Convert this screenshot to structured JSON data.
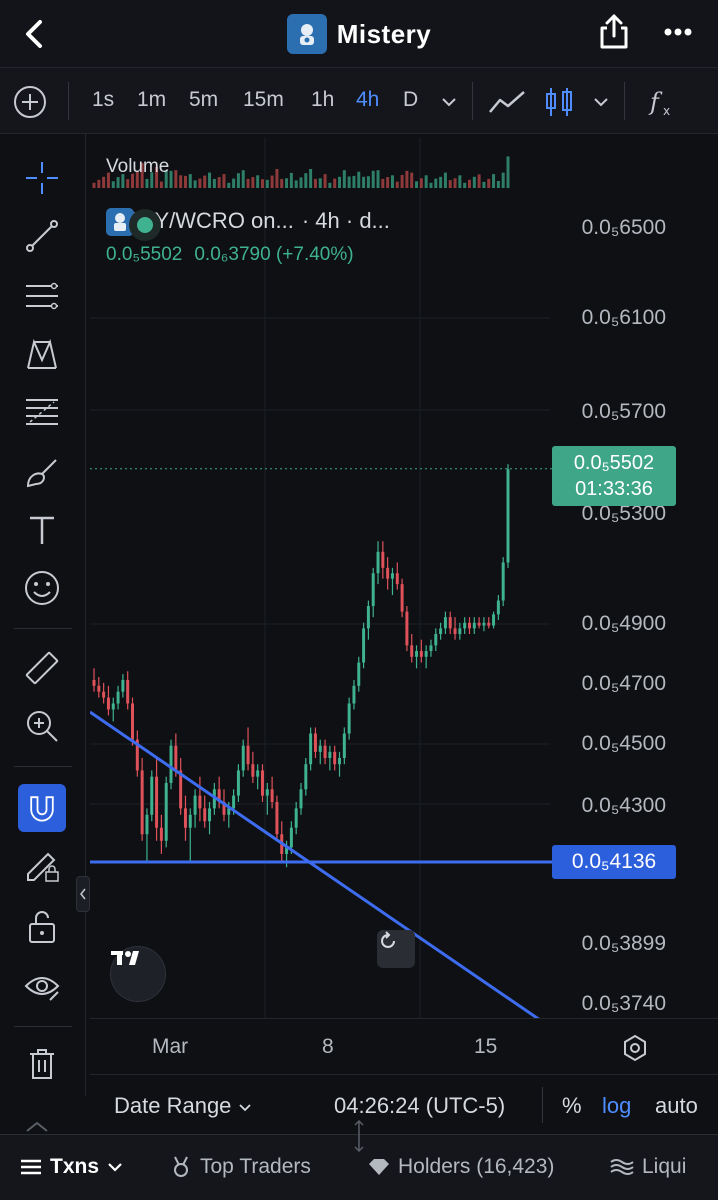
{
  "nav": {
    "title": "Mistery"
  },
  "toolbar": {
    "timeframes": [
      "1s",
      "1m",
      "5m",
      "15m",
      "1h",
      "4h",
      "D"
    ],
    "active_timeframe": "4h"
  },
  "legend": {
    "pair": "MERY/WCRO on...",
    "interval": "· 4h · d...",
    "price": "0.0₅5502",
    "change": "0.0₆3790 (+7.40%)"
  },
  "volume_label": "Volume",
  "price_axis": {
    "labels": [
      "0.0₅6500",
      "0.0₅6100",
      "0.0₅5700",
      "0.0₅5300",
      "0.0₅4900",
      "0.0₅4700",
      "0.0₅4500",
      "0.0₅4300",
      "0.0₅3899",
      "0.0₅3740"
    ],
    "live_price": "0.0₅5502",
    "countdown": "01:33:36",
    "hline_price": "0.0₅4136"
  },
  "x_axis": {
    "labels": [
      "Mar",
      "8",
      "15"
    ]
  },
  "footer": {
    "date_range": "Date Range",
    "clock": "04:26:24 (UTC-5)",
    "percent": "%",
    "log": "log",
    "auto": "auto"
  },
  "bottom_tabs": [
    "Txns",
    "Top Traders",
    "Holders (16,423)",
    "Liqui"
  ],
  "chart_data": {
    "type": "candlestick",
    "title": "MERY/WCRO",
    "interval": "4h",
    "x": [
      "Mar",
      "8",
      "15"
    ],
    "scale": "log",
    "yrange": [
      3.72e-06,
      6.6e-06
    ],
    "last_price": 5.502e-06,
    "horizontal_line": 4.136e-06,
    "candles": [
      [
        4.72,
        4.76,
        4.68,
        4.7
      ],
      [
        4.7,
        4.73,
        4.66,
        4.68
      ],
      [
        4.68,
        4.71,
        4.64,
        4.66
      ],
      [
        4.66,
        4.7,
        4.6,
        4.62
      ],
      [
        4.62,
        4.66,
        4.58,
        4.64
      ],
      [
        4.64,
        4.7,
        4.62,
        4.68
      ],
      [
        4.68,
        4.74,
        4.66,
        4.72
      ],
      [
        4.72,
        4.75,
        4.62,
        4.64
      ],
      [
        4.64,
        4.66,
        4.5,
        4.52
      ],
      [
        4.52,
        4.55,
        4.4,
        4.42
      ],
      [
        4.42,
        4.46,
        4.2,
        4.22
      ],
      [
        4.22,
        4.3,
        4.14,
        4.28
      ],
      [
        4.28,
        4.42,
        4.26,
        4.4
      ],
      [
        4.4,
        4.46,
        4.2,
        4.24
      ],
      [
        4.24,
        4.28,
        4.16,
        4.2
      ],
      [
        4.2,
        4.4,
        4.18,
        4.38
      ],
      [
        4.38,
        4.52,
        4.36,
        4.5
      ],
      [
        4.5,
        4.54,
        4.4,
        4.42
      ],
      [
        4.42,
        4.46,
        4.28,
        4.3
      ],
      [
        4.3,
        4.34,
        4.2,
        4.24
      ],
      [
        4.24,
        4.3,
        4.14,
        4.28
      ],
      [
        4.28,
        4.36,
        4.24,
        4.34
      ],
      [
        4.34,
        4.4,
        4.26,
        4.3
      ],
      [
        4.3,
        4.34,
        4.24,
        4.26
      ],
      [
        4.26,
        4.32,
        4.22,
        4.3
      ],
      [
        4.3,
        4.38,
        4.28,
        4.36
      ],
      [
        4.36,
        4.4,
        4.3,
        4.32
      ],
      [
        4.32,
        4.36,
        4.26,
        4.28
      ],
      [
        4.28,
        4.32,
        4.24,
        4.3
      ],
      [
        4.3,
        4.36,
        4.28,
        4.34
      ],
      [
        4.34,
        4.44,
        4.32,
        4.42
      ],
      [
        4.42,
        4.52,
        4.4,
        4.5
      ],
      [
        4.5,
        4.56,
        4.42,
        4.44
      ],
      [
        4.44,
        4.48,
        4.38,
        4.4
      ],
      [
        4.4,
        4.44,
        4.36,
        4.42
      ],
      [
        4.42,
        4.44,
        4.32,
        4.34
      ],
      [
        4.34,
        4.38,
        4.28,
        4.36
      ],
      [
        4.36,
        4.4,
        4.3,
        4.32
      ],
      [
        4.32,
        4.34,
        4.2,
        4.22
      ],
      [
        4.22,
        4.26,
        4.14,
        4.16
      ],
      [
        4.16,
        4.2,
        4.12,
        4.18
      ],
      [
        4.18,
        4.26,
        4.16,
        4.24
      ],
      [
        4.24,
        4.32,
        4.22,
        4.3
      ],
      [
        4.3,
        4.38,
        4.28,
        4.36
      ],
      [
        4.36,
        4.46,
        4.34,
        4.44
      ],
      [
        4.44,
        4.56,
        4.42,
        4.54
      ],
      [
        4.54,
        4.56,
        4.46,
        4.48
      ],
      [
        4.48,
        4.52,
        4.44,
        4.5
      ],
      [
        4.5,
        4.52,
        4.44,
        4.46
      ],
      [
        4.46,
        4.5,
        4.42,
        4.48
      ],
      [
        4.48,
        4.5,
        4.42,
        4.44
      ],
      [
        4.44,
        4.48,
        4.4,
        4.46
      ],
      [
        4.46,
        4.56,
        4.44,
        4.54
      ],
      [
        4.54,
        4.66,
        4.52,
        4.64
      ],
      [
        4.64,
        4.72,
        4.62,
        4.7
      ],
      [
        4.7,
        4.8,
        4.68,
        4.78
      ],
      [
        4.78,
        4.92,
        4.76,
        4.9
      ],
      [
        4.9,
        5.0,
        4.86,
        4.98
      ],
      [
        4.98,
        5.12,
        4.94,
        5.1
      ],
      [
        5.1,
        5.22,
        5.06,
        5.18
      ],
      [
        5.18,
        5.22,
        5.08,
        5.12
      ],
      [
        5.12,
        5.16,
        5.04,
        5.08
      ],
      [
        5.08,
        5.12,
        5.02,
        5.1
      ],
      [
        5.1,
        5.14,
        5.04,
        5.06
      ],
      [
        5.06,
        5.08,
        4.94,
        4.96
      ],
      [
        4.96,
        4.98,
        4.82,
        4.84
      ],
      [
        4.84,
        4.88,
        4.78,
        4.8
      ],
      [
        4.8,
        4.84,
        4.76,
        4.82
      ],
      [
        4.82,
        4.86,
        4.78,
        4.8
      ],
      [
        4.8,
        4.84,
        4.76,
        4.82
      ],
      [
        4.82,
        4.86,
        4.8,
        4.84
      ],
      [
        4.84,
        4.9,
        4.82,
        4.88
      ],
      [
        4.88,
        4.92,
        4.86,
        4.9
      ],
      [
        4.9,
        4.96,
        4.88,
        4.94
      ],
      [
        4.94,
        4.96,
        4.88,
        4.9
      ],
      [
        4.9,
        4.94,
        4.86,
        4.88
      ],
      [
        4.88,
        4.92,
        4.86,
        4.9
      ],
      [
        4.9,
        4.94,
        4.88,
        4.92
      ],
      [
        4.92,
        4.94,
        4.88,
        4.9
      ],
      [
        4.9,
        4.94,
        4.88,
        4.92
      ],
      [
        4.92,
        4.94,
        4.9,
        4.91
      ],
      [
        4.91,
        4.94,
        4.89,
        4.92
      ],
      [
        4.92,
        4.94,
        4.9,
        4.91
      ],
      [
        4.91,
        4.96,
        4.9,
        4.95
      ],
      [
        4.95,
        5.02,
        4.93,
        5.0
      ],
      [
        5.0,
        5.16,
        4.98,
        5.14
      ],
      [
        5.14,
        5.52,
        5.12,
        5.5
      ]
    ],
    "price_multiplier": 1e-06
  }
}
